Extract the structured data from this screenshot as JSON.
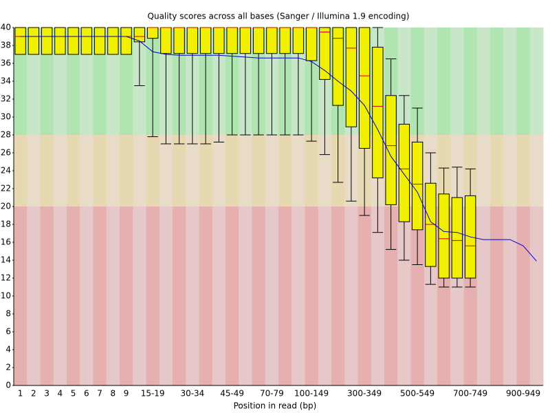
{
  "chart_data": {
    "type": "box",
    "title": "Quality scores across all bases (Sanger / Illumina 1.9 encoding)",
    "x_label": "Position in read (bp)",
    "categories": [
      "1",
      "2",
      "3",
      "4",
      "5",
      "6",
      "7",
      "8",
      "9",
      null,
      "15-19",
      null,
      null,
      "30-34",
      null,
      null,
      "45-49",
      null,
      null,
      "70-79",
      null,
      null,
      "100-149",
      null,
      null,
      null,
      "300-349",
      null,
      null,
      null,
      "500-549",
      null,
      null,
      null,
      "700-749",
      null,
      null,
      null,
      "900-949",
      null
    ],
    "whislo": [
      37,
      37,
      37,
      37,
      37,
      37,
      37,
      37,
      37,
      33.5,
      27.8,
      27,
      27,
      27,
      27,
      27.2,
      28,
      28,
      28,
      28,
      28,
      28,
      27.3,
      25.8,
      22.7,
      20.6,
      19,
      17.1,
      15.2,
      14,
      13.5,
      11.3,
      11,
      11,
      11,
      null,
      null,
      null,
      null,
      null
    ],
    "q1": [
      37,
      37,
      37,
      37,
      37,
      37,
      37,
      37,
      37,
      38.4,
      38.8,
      37.1,
      37.1,
      37.1,
      37.1,
      37.1,
      37.1,
      37.1,
      37.1,
      37.1,
      37.1,
      37.1,
      36.3,
      34.2,
      31.3,
      28.9,
      26.5,
      23.2,
      20.2,
      18.3,
      17.4,
      13.3,
      12,
      12,
      12,
      null,
      null,
      null,
      null,
      null
    ],
    "median": [
      39,
      39,
      39,
      39,
      39,
      39,
      39,
      39,
      39,
      39,
      40,
      40,
      40,
      40,
      40,
      40,
      40,
      40,
      40,
      40,
      40,
      40,
      40,
      39.5,
      38.8,
      37.7,
      34.6,
      31.2,
      26.8,
      24.2,
      22.5,
      18,
      16.4,
      16.2,
      15.6,
      null,
      null,
      null,
      null,
      null
    ],
    "q3": [
      40,
      40,
      40,
      40,
      40,
      40,
      40,
      40,
      40,
      40,
      40,
      40,
      40,
      40,
      40,
      40,
      40,
      40,
      40,
      40,
      40,
      40,
      40,
      40,
      40,
      40,
      40,
      37.8,
      32.4,
      29.2,
      27.2,
      22.6,
      21.4,
      21,
      21.2,
      null,
      null,
      null,
      null,
      null
    ],
    "whishi": [
      40,
      40,
      40,
      40,
      40,
      40,
      40,
      40,
      40,
      40,
      40,
      40,
      40,
      40,
      40,
      40,
      40,
      40,
      40,
      40,
      40,
      40,
      40,
      40,
      40,
      40,
      40,
      40,
      36.5,
      32.4,
      31,
      26,
      24.3,
      24.4,
      24.2,
      null,
      null,
      null,
      null,
      null
    ],
    "mean": [
      39,
      39,
      39,
      39,
      39,
      39,
      39,
      39,
      39,
      38.5,
      37.3,
      37,
      36.9,
      36.9,
      36.9,
      36.9,
      36.8,
      36.7,
      36.6,
      36.6,
      36.6,
      36.6,
      36.2,
      35.2,
      34,
      32.9,
      31.3,
      28.6,
      25.6,
      23.6,
      21.6,
      18.3,
      17.2,
      17.1,
      16.6,
      16.3,
      16.3,
      16.3,
      15.6,
      13.9
    ],
    "box_color": "#f0f000",
    "median_color": "#d00000",
    "mean_color": "#0000c8",
    "zones": [
      {
        "from": 28,
        "to": 40,
        "colors": [
          "#b0e4b0",
          "#c8e6c8"
        ]
      },
      {
        "from": 20,
        "to": 28,
        "colors": [
          "#e6d8b0",
          "#e8dcc8"
        ]
      },
      {
        "from": 0,
        "to": 20,
        "colors": [
          "#e6b0b0",
          "#e6c8c8"
        ]
      }
    ],
    "ylim": [
      0,
      40
    ],
    "yticks": [
      0,
      2,
      4,
      6,
      8,
      10,
      12,
      14,
      16,
      18,
      20,
      22,
      24,
      26,
      28,
      30,
      32,
      34,
      36,
      38,
      40
    ]
  }
}
